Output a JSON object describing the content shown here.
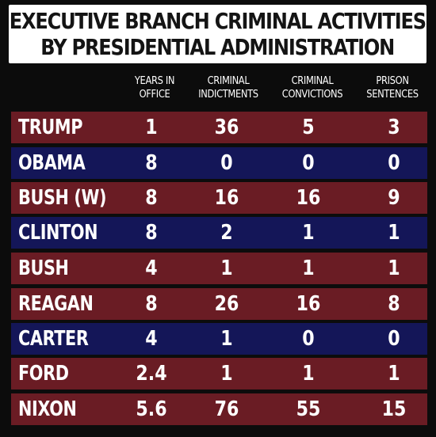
{
  "title": {
    "line1": "EXECUTIVE BRANCH CRIMINAL ACTIVITIES",
    "line2": "BY PRESIDENTIAL ADMINISTRATION"
  },
  "headers": [
    {
      "line1": "YEARS IN",
      "line2": "OFFICE"
    },
    {
      "line1": "CRIMINAL",
      "line2": "INDICTMENTS"
    },
    {
      "line1": "CRIMINAL",
      "line2": "CONVICTIONS"
    },
    {
      "line1": "PRISON",
      "line2": "SENTENCES"
    }
  ],
  "colors": {
    "red_row": "#6a1c24",
    "blue_row": "#141658",
    "background": "#0c0c0c",
    "title_box": "#ffffff",
    "text": "#ffffff"
  },
  "chart_data": {
    "type": "table",
    "title": "EXECUTIVE BRANCH CRIMINAL ACTIVITIES BY PRESIDENTIAL ADMINISTRATION",
    "columns": [
      "",
      "YEARS IN OFFICE",
      "CRIMINAL INDICTMENTS",
      "CRIMINAL CONVICTIONS",
      "PRISON SENTENCES"
    ],
    "rows": [
      {
        "name": "TRUMP",
        "years": "1",
        "indictments": "36",
        "convictions": "5",
        "sentences": "3",
        "color": "red"
      },
      {
        "name": "OBAMA",
        "years": "8",
        "indictments": "0",
        "convictions": "0",
        "sentences": "0",
        "color": "blue"
      },
      {
        "name": "BUSH (W)",
        "years": "8",
        "indictments": "16",
        "convictions": "16",
        "sentences": "9",
        "color": "red"
      },
      {
        "name": "CLINTON",
        "years": "8",
        "indictments": "2",
        "convictions": "1",
        "sentences": "1",
        "color": "blue"
      },
      {
        "name": "BUSH",
        "years": "4",
        "indictments": "1",
        "convictions": "1",
        "sentences": "1",
        "color": "red"
      },
      {
        "name": "REAGAN",
        "years": "8",
        "indictments": "26",
        "convictions": "16",
        "sentences": "8",
        "color": "red"
      },
      {
        "name": "CARTER",
        "years": "4",
        "indictments": "1",
        "convictions": "0",
        "sentences": "0",
        "color": "blue"
      },
      {
        "name": "FORD",
        "years": "2.4",
        "indictments": "1",
        "convictions": "1",
        "sentences": "1",
        "color": "red"
      },
      {
        "name": "NIXON",
        "years": "5.6",
        "indictments": "76",
        "convictions": "55",
        "sentences": "15",
        "color": "red"
      }
    ]
  }
}
